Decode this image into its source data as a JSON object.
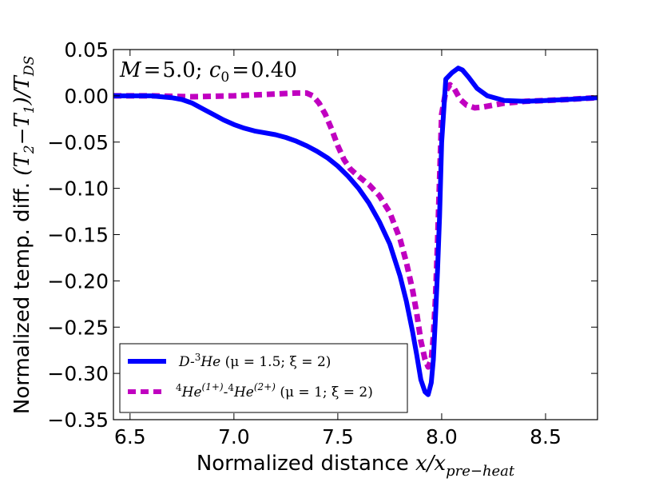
{
  "chart_data": {
    "type": "line",
    "annotation": {
      "M_label": "M",
      "M_value": "5.0",
      "c_label": "c",
      "c_sub": "0",
      "c_value": "0.40"
    },
    "xlabel": {
      "text": "Normalized distance ",
      "math": "x/x",
      "math_sub": "pre−heat"
    },
    "ylabel": {
      "text": "Normalized temp. diff. ",
      "math_a": "(T",
      "sub_a": "2",
      "math_b": "−T",
      "sub_b": "1",
      "math_c": ")/T",
      "sub_c": "DS"
    },
    "xlim": [
      6.42,
      8.75
    ],
    "ylim": [
      -0.35,
      0.05
    ],
    "x_ticks": [
      6.5,
      7.0,
      7.5,
      8.0,
      8.5
    ],
    "x_tick_labels": [
      "6.5",
      "7.0",
      "7.5",
      "8.0",
      "8.5"
    ],
    "y_ticks": [
      0.05,
      0.0,
      -0.05,
      -0.1,
      -0.15,
      -0.2,
      -0.25,
      -0.3,
      -0.35
    ],
    "y_tick_labels": [
      "0.05",
      "0.00",
      "−0.05",
      "−0.10",
      "−0.15",
      "−0.20",
      "−0.25",
      "−0.30",
      "−0.35"
    ],
    "legend_position": "lower-left",
    "series": [
      {
        "name": "D-3He (mu=1.5; xi=2)",
        "label": {
          "a": "D-",
          "sup1": "3",
          "b": "He",
          "c": " (μ = 1.5; ξ = 2)"
        },
        "color": "#0000ff",
        "style": "solid",
        "x": [
          6.42,
          6.5,
          6.6,
          6.7,
          6.75,
          6.8,
          6.85,
          6.9,
          6.95,
          7.0,
          7.05,
          7.1,
          7.15,
          7.2,
          7.25,
          7.3,
          7.35,
          7.4,
          7.45,
          7.5,
          7.55,
          7.6,
          7.65,
          7.7,
          7.75,
          7.8,
          7.83,
          7.86,
          7.88,
          7.9,
          7.92,
          7.935,
          7.95,
          7.96,
          7.97,
          7.98,
          7.99,
          8.0,
          8.02,
          8.05,
          8.08,
          8.1,
          8.13,
          8.17,
          8.22,
          8.3,
          8.4,
          8.5,
          8.6,
          8.75
        ],
        "y": [
          0.0,
          0.0,
          0.0,
          -0.002,
          -0.004,
          -0.008,
          -0.014,
          -0.02,
          -0.026,
          -0.031,
          -0.035,
          -0.038,
          -0.04,
          -0.042,
          -0.045,
          -0.049,
          -0.054,
          -0.06,
          -0.067,
          -0.076,
          -0.087,
          -0.1,
          -0.116,
          -0.136,
          -0.16,
          -0.195,
          -0.222,
          -0.255,
          -0.28,
          -0.307,
          -0.32,
          -0.323,
          -0.31,
          -0.285,
          -0.24,
          -0.19,
          -0.13,
          -0.05,
          0.018,
          0.025,
          0.03,
          0.028,
          0.02,
          0.008,
          0.0,
          -0.005,
          -0.006,
          -0.005,
          -0.004,
          -0.002
        ]
      },
      {
        "name": "4He(1+)-4He(2+) (mu=1; xi=2)",
        "label": {
          "sup1": "4",
          "a": "He",
          "sup2": "(1+)",
          "b": "-",
          "sup3": "4",
          "c": "He",
          "sup4": "(2+)",
          "d": " (μ = 1; ξ = 2)"
        },
        "color": "#c000c0",
        "style": "dashed",
        "x": [
          6.42,
          6.6,
          6.8,
          7.0,
          7.1,
          7.2,
          7.3,
          7.35,
          7.38,
          7.41,
          7.44,
          7.47,
          7.5,
          7.53,
          7.56,
          7.6,
          7.65,
          7.7,
          7.75,
          7.8,
          7.83,
          7.86,
          7.88,
          7.9,
          7.92,
          7.935,
          7.95,
          7.96,
          7.97,
          7.98,
          7.99,
          8.0,
          8.02,
          8.04,
          8.06,
          8.09,
          8.12,
          8.16,
          8.2,
          8.3,
          8.4,
          8.5,
          8.6,
          8.75
        ],
        "y": [
          0.0,
          0.0,
          -0.001,
          0.0,
          0.001,
          0.002,
          0.003,
          0.003,
          0.0,
          -0.008,
          -0.02,
          -0.036,
          -0.054,
          -0.069,
          -0.079,
          -0.087,
          -0.096,
          -0.108,
          -0.126,
          -0.155,
          -0.18,
          -0.21,
          -0.235,
          -0.265,
          -0.285,
          -0.293,
          -0.285,
          -0.26,
          -0.22,
          -0.16,
          -0.09,
          -0.02,
          0.005,
          0.012,
          0.008,
          -0.004,
          -0.01,
          -0.013,
          -0.012,
          -0.008,
          -0.006,
          -0.005,
          -0.004,
          -0.002
        ]
      }
    ]
  }
}
